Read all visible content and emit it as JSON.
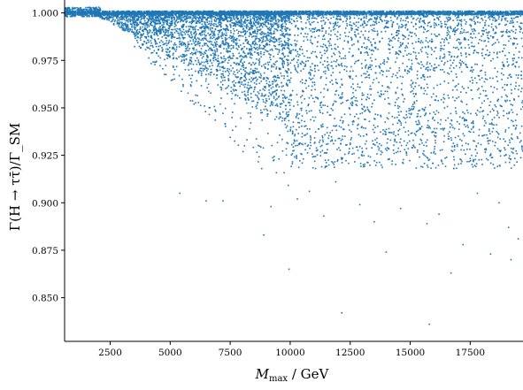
{
  "chart_data": {
    "type": "scatter",
    "xlabel": "M_max / GeV",
    "ylabel": "Γ(H → ττ̄)/Γ_SM",
    "xlim": [
      600,
      19700
    ],
    "ylim": [
      0.827,
      1.004
    ],
    "x_ticks": [
      2500,
      5000,
      7500,
      10000,
      12500,
      15000,
      17500
    ],
    "x_tick_labels": [
      "2500",
      "5000",
      "7500",
      "10000",
      "12500",
      "15000",
      "17500"
    ],
    "y_ticks": [
      0.85,
      0.875,
      0.9,
      0.925,
      0.95,
      0.975,
      1.0
    ],
    "y_tick_labels": [
      "0.850",
      "0.875",
      "0.900",
      "0.925",
      "0.950",
      "0.975",
      "1.000"
    ],
    "grid": false,
    "marker_color": "#1f77b4",
    "points": [
      [
        12150,
        0.842
      ],
      [
        15800,
        0.836
      ],
      [
        9950,
        0.865
      ],
      [
        16700,
        0.863
      ],
      [
        14000,
        0.874
      ],
      [
        8900,
        0.883
      ],
      [
        18350,
        0.873
      ],
      [
        19200,
        0.87
      ],
      [
        19500,
        0.881
      ],
      [
        17200,
        0.878
      ],
      [
        15700,
        0.889
      ],
      [
        11400,
        0.893
      ],
      [
        6500,
        0.901
      ],
      [
        7200,
        0.901
      ],
      [
        5400,
        0.905
      ],
      [
        10300,
        0.902
      ],
      [
        12900,
        0.899
      ],
      [
        14600,
        0.897
      ],
      [
        16200,
        0.894
      ],
      [
        18700,
        0.9
      ],
      [
        19100,
        0.887
      ],
      [
        17800,
        0.905
      ],
      [
        9200,
        0.898
      ],
      [
        13500,
        0.89
      ],
      [
        11900,
        0.911
      ],
      [
        10800,
        0.906
      ]
    ]
  }
}
